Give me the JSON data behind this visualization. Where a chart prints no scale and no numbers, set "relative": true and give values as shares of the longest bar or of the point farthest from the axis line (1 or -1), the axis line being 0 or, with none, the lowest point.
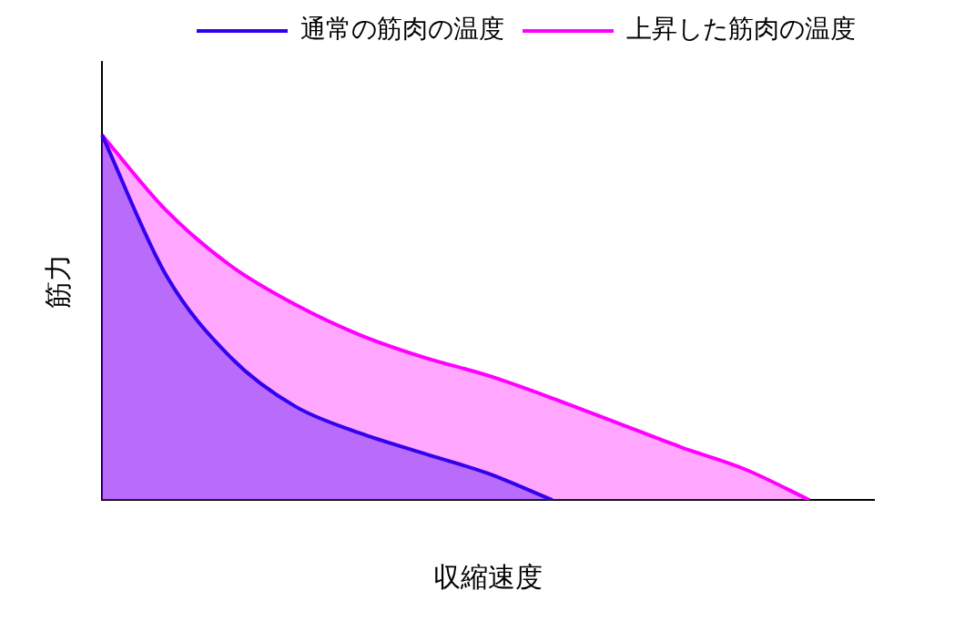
{
  "chart_data": {
    "type": "area",
    "relative": true,
    "xlabel": "収縮速度",
    "ylabel": "筋力",
    "legend": "top right",
    "grid": false,
    "marker": "none",
    "categories": [
      null,
      null,
      null,
      null,
      null,
      null,
      null,
      null,
      null,
      null,
      null,
      null,
      null
    ],
    "series": [
      {
        "name": "通常の筋肉の温度",
        "color": "#3300ee",
        "values": [
          1,
          0.615,
          0.391,
          0.257,
          0.184,
          0.128,
          0.073,
          0,
          null,
          null,
          null,
          null,
          null
        ]
      },
      {
        "name": "上昇した筋肉の温度",
        "color": "#ff00ff",
        "values": [
          1,
          0.793,
          0.642,
          0.536,
          0.453,
          0.391,
          0.341,
          0.279,
          0.212,
          0.145,
          0.084,
          0,
          null
        ]
      }
    ]
  }
}
